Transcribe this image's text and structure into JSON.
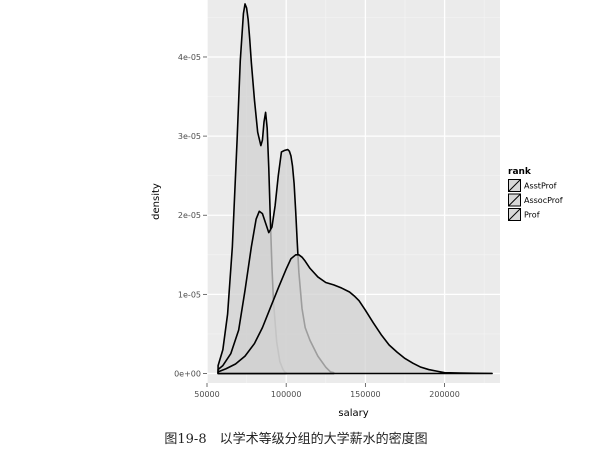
{
  "caption": "图19-8　以学术等级分组的大学薪水的密度图",
  "colors": {
    "panel_bg": "#ebebeb",
    "grid_major": "#ffffff",
    "grid_minor": "#f4f4f4",
    "fill": "#d2d2d2",
    "fill_opacity": 0.75,
    "outline": "#000000"
  },
  "chart_data": {
    "type": "area",
    "title": "",
    "xlabel": "salary",
    "ylabel": "density",
    "xlim": [
      50000,
      235000
    ],
    "ylim": [
      -1.2e-06,
      4.72e-05
    ],
    "x_ticks": [
      50000,
      100000,
      150000,
      200000
    ],
    "x_tick_labels": [
      "50000",
      "100000",
      "150000",
      "200000"
    ],
    "y_ticks": [
      0,
      1e-05,
      2e-05,
      3e-05,
      4e-05
    ],
    "y_tick_labels": [
      "0e+00",
      "1e-05",
      "2e-05",
      "3e-05",
      "4e-05"
    ],
    "grid": true,
    "legend": {
      "title": "rank",
      "position": "right",
      "entries": [
        "AsstProf",
        "AssocProf",
        "Prof"
      ]
    },
    "series": [
      {
        "name": "AsstProf",
        "x": [
          57000,
          60000,
          63000,
          66000,
          69000,
          71000,
          73000,
          74000,
          75000,
          76000,
          77000,
          78000,
          80000,
          82000,
          84000,
          85000,
          86000,
          87000,
          88000,
          89000,
          90000,
          91000,
          92000,
          94000,
          96000,
          98000,
          99000,
          100000
        ],
        "y": [
          1e-06,
          3e-06,
          7.5e-06,
          1.6e-05,
          2.95e-05,
          3.95e-05,
          4.55e-05,
          4.67e-05,
          4.62e-05,
          4.47e-05,
          4.22e-05,
          3.93e-05,
          3.45e-05,
          3.05e-05,
          2.88e-05,
          2.95e-05,
          3.18e-05,
          3.3e-05,
          3.1e-05,
          2.6e-05,
          1.95e-05,
          1.35e-05,
          9e-06,
          4e-06,
          1.5e-06,
          5e-07,
          2e-07,
          1e-07
        ]
      },
      {
        "name": "AssocProf",
        "x": [
          57000,
          60000,
          65000,
          70000,
          74000,
          78000,
          81000,
          83000,
          85000,
          87000,
          89000,
          91000,
          93000,
          95000,
          97000,
          99000,
          101000,
          102000,
          103000,
          104000,
          105000,
          106000,
          107000,
          108000,
          110000,
          112000,
          115000,
          120000,
          125000,
          128000,
          130000
        ],
        "y": [
          5e-07,
          1e-06,
          2.5e-06,
          5.5e-06,
          1.05e-05,
          1.6e-05,
          1.95e-05,
          2.05e-05,
          2.02e-05,
          1.9e-05,
          1.78e-05,
          1.85e-05,
          2.12e-05,
          2.5e-05,
          2.8e-05,
          2.82e-05,
          2.83e-05,
          2.81e-05,
          2.75e-05,
          2.62e-05,
          2.4e-05,
          2.05e-05,
          1.65e-05,
          1.28e-05,
          8.2e-06,
          5.8e-06,
          4.2e-06,
          2.2e-06,
          8e-07,
          2e-07,
          1e-07
        ]
      },
      {
        "name": "Prof",
        "x": [
          57000,
          62000,
          68000,
          74000,
          80000,
          85000,
          90000,
          95000,
          100000,
          103000,
          106000,
          108000,
          110000,
          112000,
          115000,
          120000,
          125000,
          130000,
          135000,
          140000,
          143000,
          146000,
          150000,
          155000,
          160000,
          165000,
          170000,
          175000,
          180000,
          185000,
          190000,
          195000,
          200000,
          210000,
          220000,
          230000
        ],
        "y": [
          2e-07,
          6e-07,
          1.2e-06,
          2.2e-06,
          3.8e-06,
          5.8e-06,
          8.3e-06,
          1.08e-05,
          1.32e-05,
          1.45e-05,
          1.5e-05,
          1.5e-05,
          1.47e-05,
          1.42e-05,
          1.33e-05,
          1.22e-05,
          1.15e-05,
          1.12e-05,
          1.08e-05,
          1.03e-05,
          9.8e-06,
          9.2e-06,
          8e-06,
          6.4e-06,
          4.9e-06,
          3.6e-06,
          2.7e-06,
          1.9e-06,
          1.3e-06,
          8e-07,
          5e-07,
          3e-07,
          1e-07,
          5e-08,
          2e-08,
          1e-08
        ]
      }
    ]
  }
}
